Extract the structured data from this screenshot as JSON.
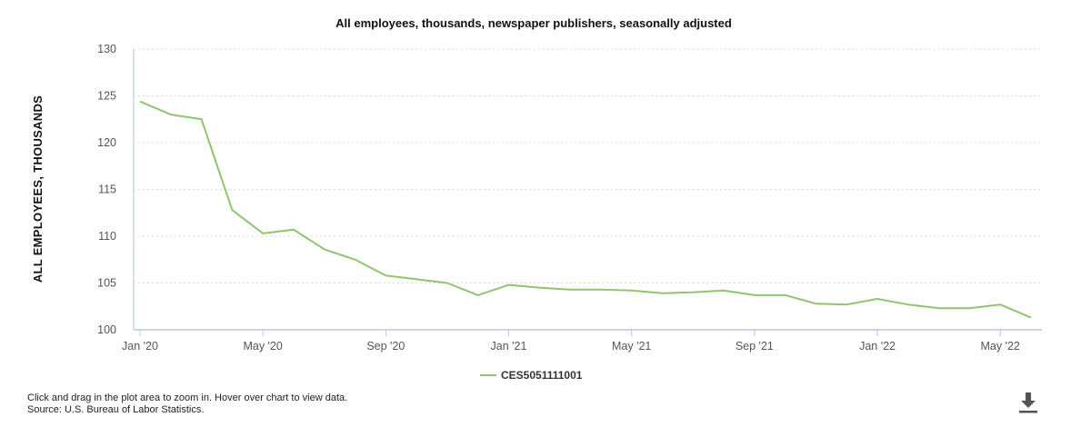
{
  "chart_data": {
    "type": "line",
    "title": "All employees, thousands, newspaper publishers, seasonally adjusted",
    "ylabel": "ALL EMPLOYEES, THOUSANDS",
    "xlabel": "",
    "ylim": [
      100,
      130
    ],
    "y_ticks": [
      100,
      105,
      110,
      115,
      120,
      125,
      130
    ],
    "x_tick_labels": [
      "Jan '20",
      "May '20",
      "Sep '20",
      "Jan '21",
      "May '21",
      "Sep '21",
      "Jan '22",
      "May '22"
    ],
    "x_months": [
      "Jan 2020",
      "Feb 2020",
      "Mar 2020",
      "Apr 2020",
      "May 2020",
      "Jun 2020",
      "Jul 2020",
      "Aug 2020",
      "Sep 2020",
      "Oct 2020",
      "Nov 2020",
      "Dec 2020",
      "Jan 2021",
      "Feb 2021",
      "Mar 2021",
      "Apr 2021",
      "May 2021",
      "Jun 2021",
      "Jul 2021",
      "Aug 2021",
      "Sep 2021",
      "Oct 2021",
      "Nov 2021",
      "Dec 2021",
      "Jan 2022",
      "Feb 2022",
      "Mar 2022",
      "Apr 2022",
      "May 2022",
      "Jun 2022"
    ],
    "grid": "horizontal-dotted",
    "legend_placement": "bottom-center",
    "series": [
      {
        "name": "CES5051111001",
        "color": "#90c46e",
        "values": [
          124.4,
          123.0,
          122.5,
          112.8,
          110.3,
          110.7,
          108.6,
          107.5,
          105.8,
          105.4,
          105.0,
          103.7,
          104.8,
          104.5,
          104.3,
          104.3,
          104.2,
          103.9,
          104.0,
          104.2,
          103.7,
          103.7,
          102.8,
          102.7,
          103.3,
          102.7,
          102.3,
          102.3,
          102.7,
          101.3
        ]
      }
    ]
  },
  "notes": {
    "line1": "Click and drag in the plot area to zoom in. Hover over chart to view data.",
    "line2": "Source: U.S. Bureau of Labor Statistics."
  },
  "icons": {
    "download": "download-icon"
  }
}
